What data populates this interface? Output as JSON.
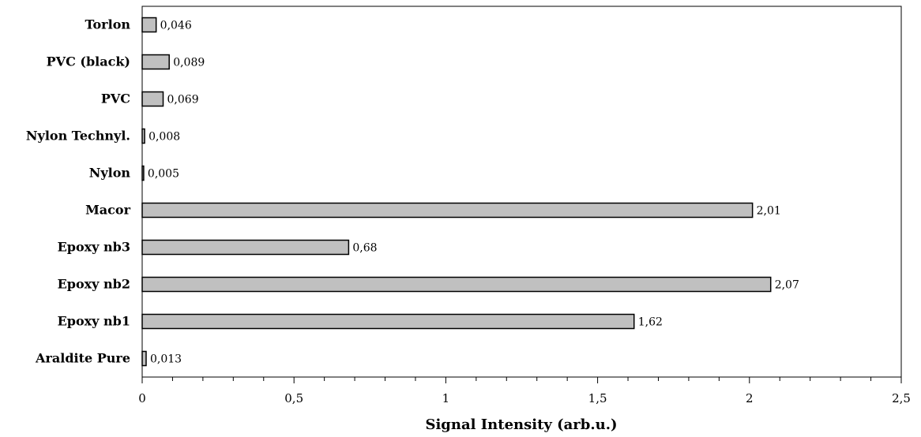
{
  "chart_data": {
    "type": "bar",
    "orientation": "horizontal",
    "categories": [
      "Torlon",
      "PVC (black)",
      "PVC",
      "Nylon Technyl.",
      "Nylon",
      "Macor",
      "Epoxy nb3",
      "Epoxy nb2",
      "Epoxy nb1",
      "Araldite Pure"
    ],
    "values": [
      0.046,
      0.089,
      0.069,
      0.008,
      0.005,
      2.01,
      0.68,
      2.07,
      1.62,
      0.013
    ],
    "value_labels": [
      "0,046",
      "0,089",
      "0,069",
      "0,008",
      "0,005",
      "2,01",
      "0,68",
      "2,07",
      "1,62",
      "0,013"
    ],
    "xlabel": "Signal Intensity (arb.u.)",
    "ylabel": "",
    "xlim": [
      0,
      2.5
    ],
    "x_ticks": [
      0,
      0.5,
      1,
      1.5,
      2,
      2.5
    ],
    "x_tick_labels": [
      "0",
      "0,5",
      "1",
      "1,5",
      "2",
      "2,5"
    ],
    "grid": false,
    "legend": "none",
    "colors": {
      "bar_fill": "#c0c0c0",
      "bar_stroke": "#000000"
    }
  }
}
